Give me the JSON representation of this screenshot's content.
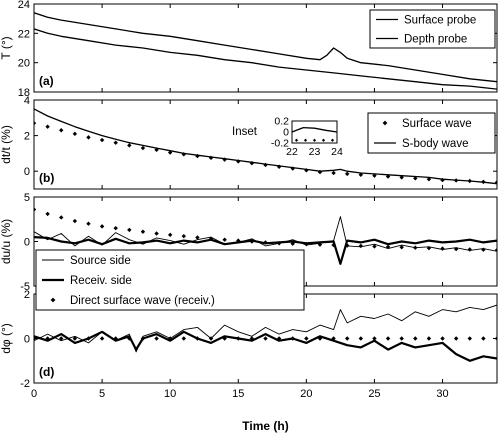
{
  "chart_data": [
    {
      "type": "line",
      "panel_label": "(a)",
      "ylabel": "T (°)",
      "xlim": [
        0,
        34
      ],
      "ylim": [
        18,
        24
      ],
      "yticks": [
        18,
        20,
        22,
        24
      ],
      "xticks": [
        0,
        5,
        10,
        15,
        20,
        25,
        30
      ],
      "legend": "top-right",
      "series": [
        {
          "name": "Surface probe",
          "style": "line",
          "color": "#000000",
          "x": [
            0,
            1,
            2,
            4,
            6,
            8,
            10,
            12,
            14,
            16,
            18,
            20,
            21,
            21.5,
            22,
            22.5,
            23,
            24,
            26,
            28,
            30,
            32,
            34
          ],
          "y": [
            23.4,
            23.1,
            22.9,
            22.6,
            22.3,
            22.0,
            21.8,
            21.5,
            21.2,
            20.9,
            20.6,
            20.3,
            20.2,
            20.5,
            21.0,
            20.7,
            20.3,
            20.0,
            19.8,
            19.5,
            19.2,
            18.9,
            18.7
          ]
        },
        {
          "name": "Depth probe",
          "style": "line",
          "color": "#000000",
          "x": [
            0,
            1,
            2,
            4,
            6,
            8,
            10,
            12,
            14,
            16,
            18,
            20,
            22,
            24,
            26,
            28,
            30,
            32,
            34
          ],
          "y": [
            22.3,
            22.0,
            21.8,
            21.5,
            21.2,
            21.0,
            20.7,
            20.5,
            20.2,
            20.0,
            19.7,
            19.5,
            19.3,
            19.1,
            18.9,
            18.7,
            18.5,
            18.4,
            18.2
          ]
        }
      ]
    },
    {
      "type": "line",
      "panel_label": "(b)",
      "ylabel": "dt/t (%)",
      "xlim": [
        0,
        34
      ],
      "ylim": [
        -1,
        4
      ],
      "yticks": [
        0,
        2,
        4
      ],
      "xticks": [
        0,
        5,
        10,
        15,
        20,
        25,
        30
      ],
      "legend": "top-right",
      "series": [
        {
          "name": "Surface wave",
          "style": "markers",
          "color": "#000000",
          "x": [
            0,
            1,
            2,
            3,
            4,
            5,
            6,
            7,
            8,
            9,
            10,
            11,
            12,
            13,
            14,
            15,
            16,
            17,
            18,
            19,
            20,
            21,
            22,
            23,
            24,
            25,
            26,
            27,
            28,
            29,
            30,
            31,
            32,
            33,
            34
          ],
          "y": [
            2.7,
            2.5,
            2.3,
            2.1,
            1.9,
            1.75,
            1.6,
            1.45,
            1.3,
            1.2,
            1.05,
            0.95,
            0.85,
            0.75,
            0.65,
            0.55,
            0.45,
            0.35,
            0.25,
            0.15,
            0.05,
            -0.05,
            -0.1,
            -0.15,
            -0.2,
            -0.25,
            -0.3,
            -0.35,
            -0.4,
            -0.45,
            -0.5,
            -0.52,
            -0.55,
            -0.6,
            -0.62
          ]
        },
        {
          "name": "S-body wave",
          "style": "line",
          "color": "#000000",
          "x": [
            0,
            1,
            2,
            3,
            4,
            5,
            6,
            7,
            8,
            9,
            10,
            11,
            12,
            13,
            14,
            15,
            16,
            17,
            18,
            19,
            20,
            21,
            22,
            22.5,
            23,
            24,
            25,
            26,
            27,
            28,
            29,
            30,
            31,
            32,
            33,
            34
          ],
          "y": [
            3.5,
            3.1,
            2.8,
            2.5,
            2.25,
            2.0,
            1.8,
            1.6,
            1.45,
            1.3,
            1.15,
            1.0,
            0.9,
            0.8,
            0.7,
            0.6,
            0.5,
            0.4,
            0.3,
            0.2,
            0.1,
            0.0,
            0.05,
            0.1,
            0.0,
            -0.1,
            -0.15,
            -0.2,
            -0.25,
            -0.3,
            -0.35,
            -0.45,
            -0.5,
            -0.55,
            -0.62,
            -0.7
          ]
        }
      ],
      "inset": {
        "label": "Inset",
        "xlim": [
          22,
          24
        ],
        "ylim": [
          -0.2,
          0.2
        ],
        "xticks": [
          22,
          23,
          24
        ],
        "yticks": [
          -0.2,
          0,
          0.2
        ],
        "line": {
          "x": [
            22,
            22.5,
            23,
            23.5,
            24
          ],
          "y": [
            0.0,
            0.08,
            0.07,
            0.03,
            0.0
          ]
        },
        "markers": {
          "x": [
            22.2,
            22.6,
            23.0,
            23.4,
            23.8
          ],
          "y": [
            -0.15,
            -0.15,
            -0.15,
            -0.15,
            -0.15
          ]
        }
      }
    },
    {
      "type": "line",
      "panel_label": "(c)",
      "ylabel": "du/u (%)",
      "xlim": [
        0,
        34
      ],
      "ylim": [
        -5,
        5
      ],
      "yticks": [
        -5,
        0,
        5
      ],
      "xticks": [
        0,
        5,
        10,
        15,
        20,
        25,
        30
      ],
      "series": [
        {
          "name": "Source side",
          "style": "thin-line",
          "color": "#000000",
          "x": [
            0,
            1,
            2,
            3,
            4,
            5,
            6,
            7,
            8,
            9,
            10,
            11,
            12,
            13,
            14,
            15,
            16,
            17,
            18,
            19,
            20,
            21,
            22,
            22.5,
            23,
            24,
            25,
            26,
            27,
            28,
            29,
            30,
            31,
            32,
            33,
            34
          ],
          "y": [
            1.1,
            0.2,
            0.9,
            -0.5,
            0.6,
            -0.4,
            1.0,
            0.2,
            -0.3,
            0.4,
            0.1,
            -0.3,
            0.2,
            0.5,
            -0.3,
            -0.1,
            0.3,
            -0.5,
            -0.2,
            0.2,
            -0.4,
            -0.2,
            0.1,
            2.8,
            -0.5,
            -0.6,
            -0.3,
            -0.8,
            -0.4,
            -0.7,
            -0.6,
            -0.9,
            -0.7,
            -1.0,
            -0.8,
            -1.1
          ]
        },
        {
          "name": "Receiv. side",
          "style": "thick-line",
          "color": "#000000",
          "x": [
            0,
            1,
            2,
            3,
            4,
            5,
            6,
            7,
            8,
            9,
            10,
            11,
            12,
            13,
            14,
            15,
            16,
            17,
            18,
            19,
            20,
            21,
            22,
            22.5,
            23,
            24,
            25,
            26,
            27,
            28,
            29,
            30,
            31,
            32,
            33,
            34
          ],
          "y": [
            0.5,
            0.4,
            0.0,
            -0.2,
            0.2,
            -0.3,
            0.3,
            -0.2,
            -0.1,
            0.1,
            -0.2,
            0.1,
            -0.1,
            0.2,
            -0.3,
            -0.1,
            0.1,
            -0.2,
            -0.1,
            0.0,
            -0.2,
            -0.1,
            0.0,
            -2.5,
            0.1,
            -0.1,
            0.2,
            -0.3,
            0.0,
            -0.2,
            0.1,
            -0.1,
            0.0,
            0.2,
            -0.1,
            0.1
          ]
        },
        {
          "name": "Direct surface wave (receiv.)",
          "style": "markers",
          "color": "#000000",
          "x": [
            0,
            1,
            2,
            3,
            4,
            5,
            6,
            7,
            8,
            9,
            10,
            11,
            12,
            13,
            14,
            15,
            16,
            17,
            18,
            19,
            20,
            21,
            22,
            23,
            24,
            25,
            26,
            27,
            28,
            29,
            30,
            31,
            32,
            33,
            34
          ],
          "y": [
            3.6,
            3.1,
            2.7,
            2.3,
            2.0,
            1.7,
            1.5,
            1.3,
            1.1,
            0.9,
            0.75,
            0.6,
            0.45,
            0.3,
            0.2,
            0.1,
            0.0,
            -0.1,
            -0.2,
            -0.25,
            -0.3,
            -0.35,
            -0.4,
            -0.45,
            -0.5,
            -0.55,
            -0.6,
            -0.65,
            -0.7,
            -0.75,
            -0.8,
            -0.85,
            -0.9,
            -0.92,
            -0.95
          ]
        }
      ]
    },
    {
      "type": "line",
      "panel_label": "(d)",
      "ylabel": "dφ (°)",
      "xlabel": "Time (h)",
      "xlim": [
        0,
        34
      ],
      "ylim": [
        -2,
        2
      ],
      "yticks": [
        -2,
        0,
        2
      ],
      "xticks": [
        0,
        5,
        10,
        15,
        20,
        25,
        30
      ],
      "legend": "top-left",
      "series": [
        {
          "name": "Source side",
          "style": "thin-line",
          "color": "#000000",
          "x": [
            0,
            1,
            2,
            3,
            4,
            5,
            6,
            7,
            7.5,
            8,
            9,
            10,
            11,
            12,
            13,
            14,
            15,
            16,
            17,
            18,
            19,
            20,
            21,
            22,
            22.5,
            23,
            24,
            25,
            26,
            27,
            28,
            29,
            30,
            31,
            32,
            33,
            34
          ],
          "y": [
            -0.1,
            0.2,
            -0.1,
            0.1,
            -0.2,
            0.3,
            -0.1,
            0.2,
            -0.6,
            0.1,
            0.3,
            0.0,
            0.4,
            0.5,
            0.0,
            0.6,
            0.3,
            0.1,
            0.5,
            0.2,
            0.4,
            0.3,
            0.6,
            0.4,
            1.3,
            0.7,
            1.0,
            0.9,
            1.1,
            0.8,
            1.2,
            1.0,
            1.3,
            1.2,
            1.4,
            1.3,
            1.5
          ]
        },
        {
          "name": "Receiv. side",
          "style": "thick-line",
          "color": "#000000",
          "x": [
            0,
            1,
            2,
            3,
            4,
            5,
            6,
            7,
            7.5,
            8,
            9,
            10,
            11,
            12,
            13,
            14,
            15,
            16,
            17,
            18,
            19,
            20,
            21,
            22,
            22.5,
            23,
            24,
            25,
            26,
            27,
            28,
            29,
            30,
            31,
            32,
            33,
            34
          ],
          "y": [
            0.1,
            -0.1,
            0.2,
            -0.2,
            0.0,
            0.3,
            -0.1,
            0.1,
            -0.5,
            0.0,
            0.2,
            -0.1,
            0.3,
            0.0,
            -0.2,
            0.1,
            0.0,
            -0.1,
            0.2,
            -0.1,
            0.0,
            -0.2,
            0.1,
            -0.1,
            -0.2,
            -0.3,
            -0.4,
            -0.1,
            -0.5,
            -0.2,
            -0.4,
            -0.3,
            -0.2,
            -0.7,
            -1.0,
            -0.8,
            -0.9
          ]
        },
        {
          "name": "Direct surface wave (receiv.)",
          "style": "markers",
          "color": "#000000",
          "x": [
            0,
            1,
            2,
            3,
            4,
            5,
            6,
            7,
            8,
            9,
            10,
            11,
            12,
            13,
            14,
            15,
            16,
            17,
            18,
            19,
            20,
            21,
            22,
            23,
            24,
            25,
            26,
            27,
            28,
            29,
            30,
            31,
            32,
            33,
            34
          ],
          "y": [
            0.0,
            0.0,
            0.0,
            0.0,
            0.0,
            0.0,
            0.0,
            0.0,
            0.0,
            0.0,
            0.0,
            0.0,
            0.0,
            0.0,
            0.0,
            0.0,
            0.0,
            0.0,
            0.0,
            0.0,
            0.0,
            0.0,
            0.0,
            0.0,
            0.0,
            0.0,
            0.0,
            0.0,
            0.0,
            0.0,
            0.0,
            0.0,
            0.0,
            0.0,
            0.0
          ]
        }
      ]
    }
  ]
}
